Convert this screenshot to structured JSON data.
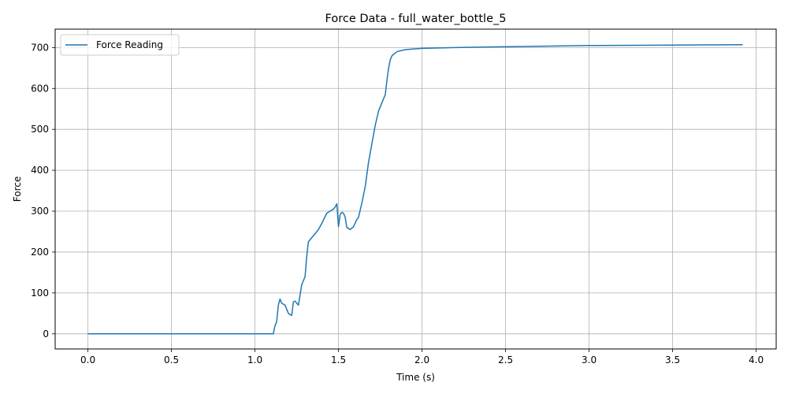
{
  "chart_data": {
    "type": "line",
    "title": "Force Data - full_water_bottle_5",
    "xlabel": "Time (s)",
    "ylabel": "Force",
    "xlim": [
      -0.196,
      4.12
    ],
    "ylim": [
      -37,
      745
    ],
    "x_ticks": [
      0.0,
      0.5,
      1.0,
      1.5,
      2.0,
      2.5,
      3.0,
      3.5,
      4.0
    ],
    "x_tick_labels": [
      "0.0",
      "0.5",
      "1.0",
      "1.5",
      "2.0",
      "2.5",
      "3.0",
      "3.5",
      "4.0"
    ],
    "y_ticks": [
      0,
      100,
      200,
      300,
      400,
      500,
      600,
      700
    ],
    "y_tick_labels": [
      "0",
      "100",
      "200",
      "300",
      "400",
      "500",
      "600",
      "700"
    ],
    "grid": true,
    "legend_position": "top-left",
    "series": [
      {
        "name": "Force Reading",
        "color": "#1f77b4",
        "x": [
          0.0,
          0.5,
          1.0,
          1.11,
          1.12,
          1.13,
          1.14,
          1.15,
          1.16,
          1.18,
          1.2,
          1.22,
          1.23,
          1.24,
          1.26,
          1.27,
          1.28,
          1.3,
          1.31,
          1.32,
          1.34,
          1.36,
          1.38,
          1.4,
          1.43,
          1.45,
          1.47,
          1.48,
          1.49,
          1.5,
          1.51,
          1.52,
          1.53,
          1.54,
          1.55,
          1.57,
          1.59,
          1.61,
          1.62,
          1.64,
          1.66,
          1.68,
          1.7,
          1.72,
          1.74,
          1.76,
          1.78,
          1.79,
          1.8,
          1.81,
          1.82,
          1.85,
          1.9,
          2.0,
          2.2,
          2.5,
          3.0,
          3.5,
          3.92
        ],
        "y": [
          0,
          0,
          0,
          0,
          20,
          30,
          70,
          85,
          75,
          70,
          50,
          45,
          78,
          80,
          70,
          95,
          120,
          140,
          190,
          225,
          235,
          245,
          255,
          270,
          295,
          300,
          305,
          310,
          318,
          262,
          292,
          297,
          295,
          285,
          260,
          255,
          262,
          280,
          285,
          320,
          360,
          420,
          465,
          510,
          545,
          565,
          585,
          620,
          650,
          670,
          680,
          690,
          695,
          698,
          700,
          702,
          705,
          706,
          707
        ]
      }
    ]
  }
}
